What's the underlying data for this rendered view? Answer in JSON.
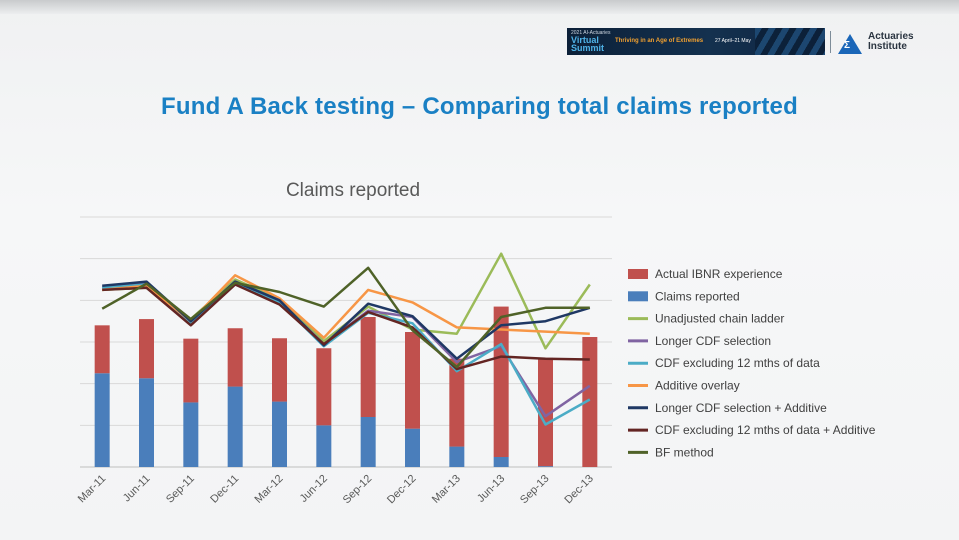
{
  "banner": {
    "event_small": "2021 AI-Actuaries",
    "event_big": "Virtual Summit",
    "theme": "Thriving in an Age of Extremes",
    "dates": "27 April–21 May"
  },
  "logo": {
    "name": "Actuaries Institute"
  },
  "slide": {
    "title": "Fund A Back testing – Comparing total claims reported"
  },
  "chart_data": {
    "type": "bar",
    "title": "Claims reported",
    "xlabel": "",
    "ylabel": "",
    "grid": true,
    "legend_position": "right",
    "ylim": [
      0,
      6
    ],
    "categories": [
      "Mar-11",
      "Jun-11",
      "Sep-11",
      "Dec-11",
      "Mar-12",
      "Jun-12",
      "Sep-12",
      "Dec-12",
      "Mar-13",
      "Jun-13",
      "Sep-13",
      "Dec-13"
    ],
    "bar_series": [
      {
        "name": "Claims reported",
        "color": "#4a7ebb",
        "values": [
          2.25,
          2.13,
          1.55,
          1.93,
          1.57,
          1.0,
          1.2,
          0.92,
          0.49,
          0.24,
          0.02,
          0.0
        ]
      },
      {
        "name": "Actual IBNR experience",
        "color": "#c0504d",
        "values": [
          1.15,
          1.42,
          1.53,
          1.4,
          1.52,
          1.85,
          2.4,
          2.32,
          2.11,
          3.61,
          2.6,
          3.12
        ]
      }
    ],
    "line_series": [
      {
        "name": "Unadjusted chain ladder",
        "color": "#9bbb59",
        "values": [
          4.25,
          4.3,
          3.55,
          4.5,
          4.03,
          3.02,
          3.85,
          3.3,
          3.2,
          5.12,
          2.85,
          4.38
        ]
      },
      {
        "name": "Longer CDF selection",
        "color": "#8064a2",
        "values": [
          4.3,
          4.4,
          3.42,
          4.45,
          3.98,
          2.95,
          3.75,
          3.6,
          2.52,
          2.9,
          1.22,
          1.95
        ]
      },
      {
        "name": "CDF excluding 12 mths of data",
        "color": "#4bacc6",
        "values": [
          4.3,
          4.38,
          3.45,
          4.4,
          3.95,
          2.9,
          3.7,
          3.45,
          2.3,
          2.95,
          1.02,
          1.62
        ]
      },
      {
        "name": "Additive overlay",
        "color": "#f79646",
        "values": [
          4.25,
          4.35,
          3.5,
          4.6,
          4.05,
          3.1,
          4.25,
          3.95,
          3.35,
          3.3,
          3.25,
          3.2
        ]
      },
      {
        "name": "Longer CDF selection + Additive",
        "color": "#1f3864",
        "values": [
          4.35,
          4.45,
          3.5,
          4.45,
          4.0,
          2.92,
          3.92,
          3.62,
          2.6,
          3.4,
          3.5,
          3.82
        ]
      },
      {
        "name": "CDF excluding 12 mths of data + Additive",
        "color": "#632523",
        "values": [
          4.25,
          4.3,
          3.4,
          4.38,
          3.9,
          2.95,
          3.72,
          3.35,
          2.35,
          2.65,
          2.6,
          2.58
        ]
      },
      {
        "name": "BF method",
        "color": "#4f6228",
        "values": [
          3.8,
          4.4,
          3.55,
          4.42,
          4.2,
          3.85,
          4.78,
          3.28,
          2.4,
          3.6,
          3.82,
          3.82
        ]
      }
    ],
    "legend_order": [
      "Actual IBNR experience",
      "Claims reported",
      "Unadjusted chain ladder",
      "Longer CDF selection",
      "CDF excluding 12 mths of data",
      "Additive overlay",
      "Longer CDF selection + Additive",
      "CDF excluding 12 mths of data + Additive",
      "BF method"
    ]
  }
}
